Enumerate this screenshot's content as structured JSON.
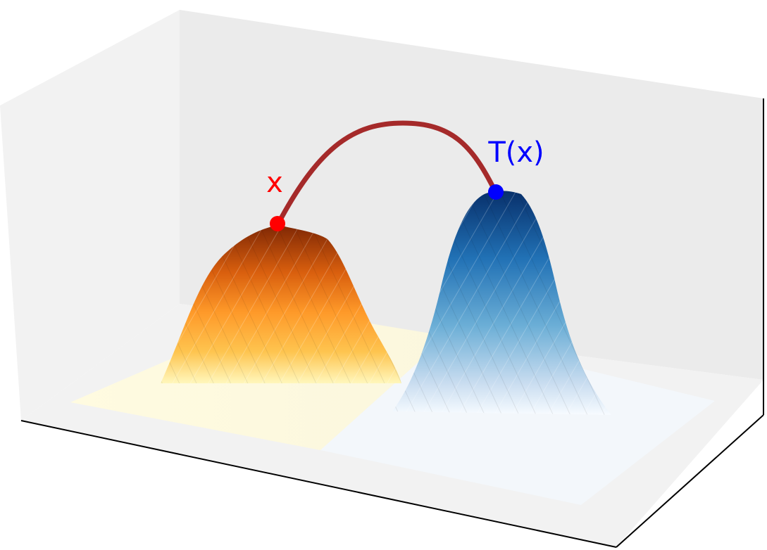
{
  "labels": {
    "source_point": "x",
    "target_point": "T(x)"
  },
  "colors": {
    "source_point": "#ff0000",
    "target_point": "#0000ff",
    "transport_arc": "#a52a2a",
    "source_surface_peak": "#7f2704",
    "source_surface_base": "#fff7bc",
    "target_surface_peak": "#08306b",
    "target_surface_base": "#f7fbff",
    "back_wall": "#ebebeb",
    "side_wall": "#f2f2f2",
    "floor": "#f2f2f2",
    "axis_edge": "#000000"
  },
  "surfaces": {
    "source": {
      "distribution": "gaussian",
      "colormap": "orange"
    },
    "target": {
      "distribution": "gaussian",
      "colormap": "blue"
    }
  }
}
